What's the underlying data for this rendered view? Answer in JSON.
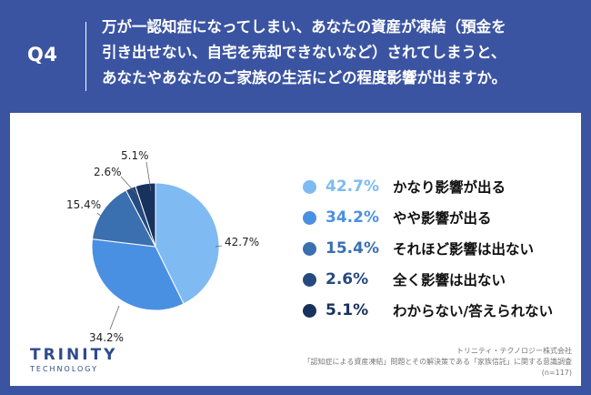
{
  "header": {
    "qlabel": "Q4",
    "question_line1": "万が一認知症になってしまい、あなたの資産が凍結（預金を",
    "question_line2": "引き出せない、自宅を売却できないなど）されてしまうと、",
    "question_line3": "あなたやあなたのご家族の生活にどの程度影響が出ますか。"
  },
  "chart_data": {
    "type": "pie",
    "categories": [
      "かなり影響が出る",
      "やや影響が出る",
      "それほど影響は出ない",
      "全く影響は出ない",
      "わからない/答えられない"
    ],
    "values": [
      42.7,
      34.2,
      15.4,
      2.6,
      5.1
    ],
    "value_labels": [
      "42.7%",
      "34.2%",
      "15.4%",
      "2.6%",
      "5.1%"
    ],
    "colors": [
      "#7fbaf3",
      "#4a90e2",
      "#3a6fb0",
      "#254a80",
      "#18325e"
    ],
    "legend_position": "right",
    "start_angle_deg": 0,
    "direction": "clockwise"
  },
  "footer": {
    "logo_main": "TRINITY",
    "logo_sub": "TECHNOLOGY",
    "source_line1": "トリニティ・テクノロジー株式会社",
    "source_line2": "「認知症による資産凍結」問題とその解決策である「家族信託」に関する意識調査",
    "source_line3": "(n=117)"
  }
}
